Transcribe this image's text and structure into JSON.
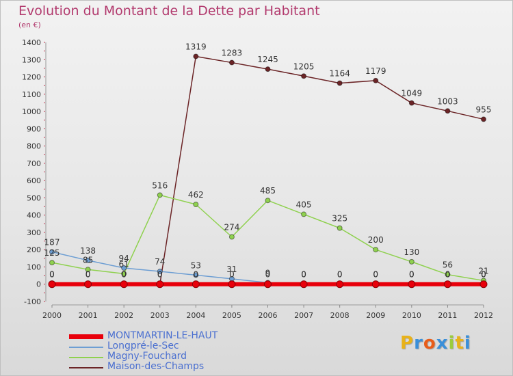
{
  "chart_data": {
    "type": "line",
    "title": "Evolution du Montant de la Dette par Habitant",
    "subtitle": "(en €)",
    "x": [
      2000,
      2001,
      2002,
      2003,
      2004,
      2005,
      2006,
      2007,
      2008,
      2009,
      2010,
      2011,
      2012
    ],
    "ylim": [
      -100,
      1400
    ],
    "yticks": [
      -100,
      0,
      100,
      200,
      300,
      400,
      500,
      600,
      700,
      800,
      900,
      1000,
      1100,
      1200,
      1300,
      1400
    ],
    "grid": false,
    "legend_position": "bottom-left",
    "series": [
      {
        "name": "MONTMARTIN-LE-HAUT",
        "color": "#e8000b",
        "values": [
          0,
          0,
          0,
          0,
          0,
          0,
          0,
          0,
          0,
          0,
          0,
          0,
          0
        ],
        "labels": [
          "0",
          "0",
          "0",
          "0",
          "0",
          "0",
          "0",
          "0",
          "0",
          "0",
          "0",
          "0",
          "0"
        ]
      },
      {
        "name": "Longpré-le-Sec",
        "color": "#6d9ed3",
        "values": [
          187,
          138,
          94,
          74,
          53,
          31,
          9,
          0,
          0,
          0,
          0,
          0,
          0
        ],
        "labels": [
          "187",
          "138",
          "94",
          "74",
          "53",
          "31",
          "9",
          "0",
          "0",
          "0",
          "0",
          "0",
          "0"
        ]
      },
      {
        "name": "Magny-Fouchard",
        "color": "#8fd14f",
        "values": [
          125,
          85,
          61,
          516,
          462,
          274,
          485,
          405,
          325,
          200,
          130,
          56,
          21
        ],
        "labels": [
          "125",
          "85",
          "61",
          "516",
          "462",
          "274",
          "485",
          "405",
          "325",
          "200",
          "130",
          "56",
          "21"
        ]
      },
      {
        "name": "Maison-des-Champs",
        "color": "#6b2426",
        "values": [
          0,
          0,
          0,
          0,
          1319,
          1283,
          1245,
          1205,
          1164,
          1179,
          1049,
          1003,
          955
        ],
        "labels": [
          "0",
          "0",
          "0",
          "0",
          "1319",
          "1283",
          "1245",
          "1205",
          "1164",
          "1179",
          "1049",
          "1003",
          "955"
        ]
      }
    ]
  },
  "logo": {
    "letters": [
      "P",
      "r",
      "o",
      "x",
      "i",
      "t",
      "i"
    ],
    "colors": [
      "#e8b21a",
      "#3a8fd9",
      "#e85d1a",
      "#3a8fd9",
      "#9ccc3c",
      "#e8b21a",
      "#3a8fd9"
    ]
  }
}
